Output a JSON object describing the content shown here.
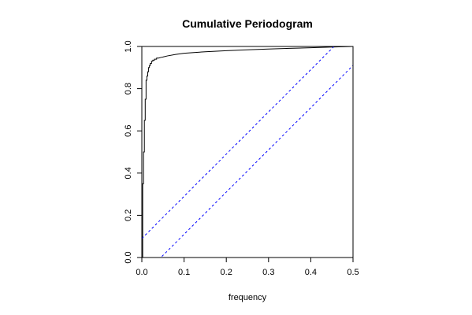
{
  "chart_data": {
    "type": "line",
    "title": "Cumulative Periodogram",
    "xlabel": "frequency",
    "ylabel": "",
    "xlim": [
      0,
      0.5
    ],
    "ylim": [
      0,
      1
    ],
    "x_ticks": [
      0.0,
      0.1,
      0.2,
      0.3,
      0.4,
      0.5
    ],
    "x_tick_labels": [
      "0.0",
      "0.1",
      "0.2",
      "0.3",
      "0.4",
      "0.5"
    ],
    "y_ticks": [
      0.0,
      0.2,
      0.4,
      0.6,
      0.8,
      1.0
    ],
    "y_tick_labels": [
      "0.0",
      "0.2",
      "0.4",
      "0.6",
      "0.8",
      "1.0"
    ],
    "grid": false,
    "colors": {
      "series": "#000000",
      "bounds": "#0000ff"
    },
    "series": [
      {
        "style": "step",
        "x": [
          0.0,
          0.002,
          0.002,
          0.004,
          0.004,
          0.006,
          0.006,
          0.008,
          0.008,
          0.01,
          0.01,
          0.012,
          0.012,
          0.014,
          0.014,
          0.016,
          0.016,
          0.018,
          0.018,
          0.02,
          0.02,
          0.023,
          0.023,
          0.026,
          0.026,
          0.03,
          0.03,
          0.035,
          0.035,
          0.04,
          0.045,
          0.05,
          0.06,
          0.08,
          0.1,
          0.15,
          0.2,
          0.25,
          0.3,
          0.35,
          0.4,
          0.45,
          0.5
        ],
        "y": [
          0.0,
          0.0,
          0.35,
          0.35,
          0.5,
          0.5,
          0.65,
          0.65,
          0.75,
          0.75,
          0.84,
          0.84,
          0.86,
          0.86,
          0.88,
          0.88,
          0.9,
          0.9,
          0.91,
          0.91,
          0.92,
          0.92,
          0.93,
          0.93,
          0.935,
          0.935,
          0.94,
          0.94,
          0.945,
          0.945,
          0.948,
          0.95,
          0.955,
          0.962,
          0.968,
          0.975,
          0.98,
          0.984,
          0.988,
          0.991,
          0.994,
          0.997,
          1.0
        ]
      },
      {
        "style": "dashed",
        "x": [
          0.0,
          0.5
        ],
        "y": [
          0.09,
          1.09
        ]
      },
      {
        "style": "dashed",
        "x": [
          0.0,
          0.5
        ],
        "y": [
          -0.09,
          0.91
        ]
      }
    ]
  }
}
